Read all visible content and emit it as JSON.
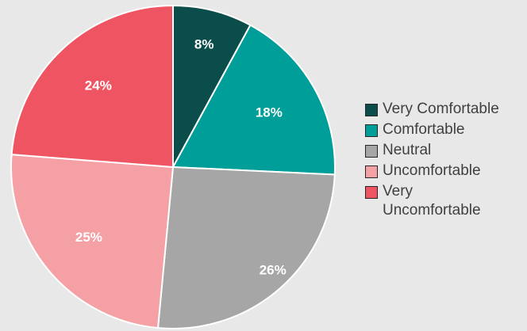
{
  "chart_data": {
    "type": "pie",
    "categories": [
      "Very Comfortable",
      "Comfortable",
      "Neutral",
      "Uncomfortable",
      "Very Uncomfortable"
    ],
    "values": [
      8,
      18,
      26,
      25,
      24
    ],
    "data_labels": [
      "8%",
      "18%",
      "26%",
      "25%",
      "24%"
    ],
    "colors": [
      "#0b4d4a",
      "#009e98",
      "#a6a6a6",
      "#f4a0a4",
      "#ef5462"
    ],
    "legend": {
      "position": "right",
      "entries": [
        "Very Comfortable",
        "Comfortable",
        "Neutral",
        "Uncomfortable",
        "Very\nUncomfortable"
      ]
    },
    "title": ""
  }
}
